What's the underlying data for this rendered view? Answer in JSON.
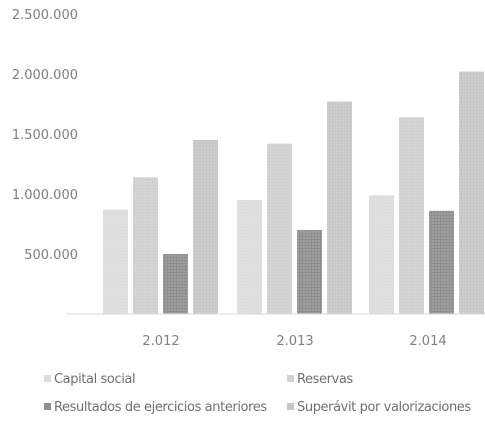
{
  "chart_data": {
    "type": "bar",
    "categories": [
      "2.012",
      "2.013",
      "2.014"
    ],
    "series": [
      {
        "name": "Capital social",
        "values": [
          870000,
          950000,
          990000
        ],
        "color": "#dcdcdc"
      },
      {
        "name": "Reservas",
        "values": [
          1140000,
          1420000,
          1640000
        ],
        "color": "#d0d0d0"
      },
      {
        "name": "Resultados de ejercicios anteriores",
        "values": [
          500000,
          700000,
          860000
        ],
        "color": "#8f8f8f"
      },
      {
        "name": "Superávit  por valorizaciones",
        "values": [
          1450000,
          1770000,
          2020000
        ],
        "color": "#c6c6c6"
      }
    ],
    "yticks": [
      "500.000",
      "1.000.000",
      "1.500.000",
      "2.000.000",
      "2.500.000"
    ],
    "ylim": [
      0,
      2500000
    ],
    "grid": false,
    "legend": "bottom"
  }
}
